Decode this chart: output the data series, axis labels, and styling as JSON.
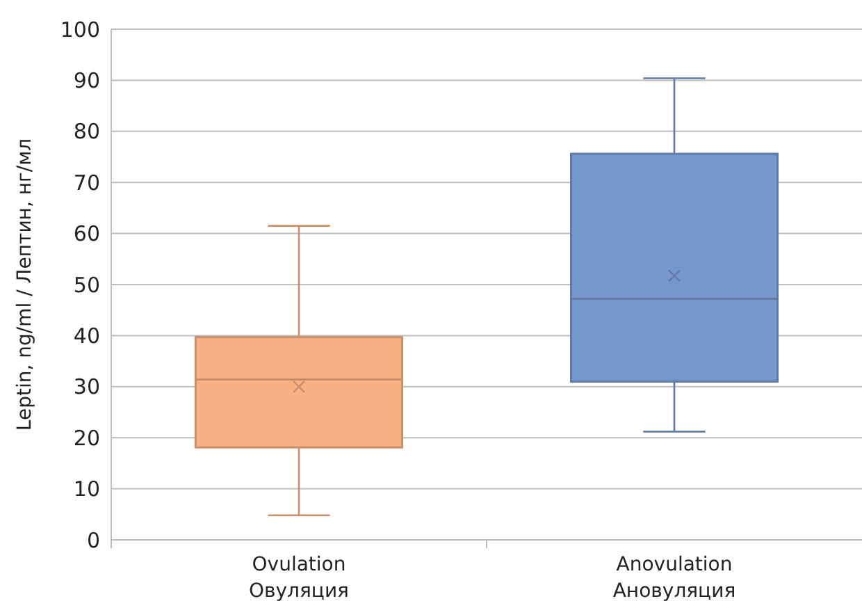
{
  "chart_data": {
    "type": "box",
    "ylabel": "Leptin, ng/ml / Лептин, нг/мл",
    "categories": [
      "Ovulation\nОвуляция",
      "Anovulation\nАновуляция"
    ],
    "colors": [
      "#f8b183",
      "#7697cc"
    ],
    "boxes": [
      {
        "low": 4.8,
        "q1": 18.1,
        "median": 31.4,
        "q3": 39.7,
        "high": 61.5,
        "mean": 30
      },
      {
        "low": 21.2,
        "q1": 31,
        "median": 47.2,
        "q3": 75.6,
        "high": 90.4,
        "mean": 51.7
      }
    ],
    "ylim": [
      0,
      100
    ],
    "yticks": [
      0,
      10,
      20,
      30,
      40,
      50,
      60,
      70,
      80,
      90,
      100
    ],
    "grid": "y"
  }
}
